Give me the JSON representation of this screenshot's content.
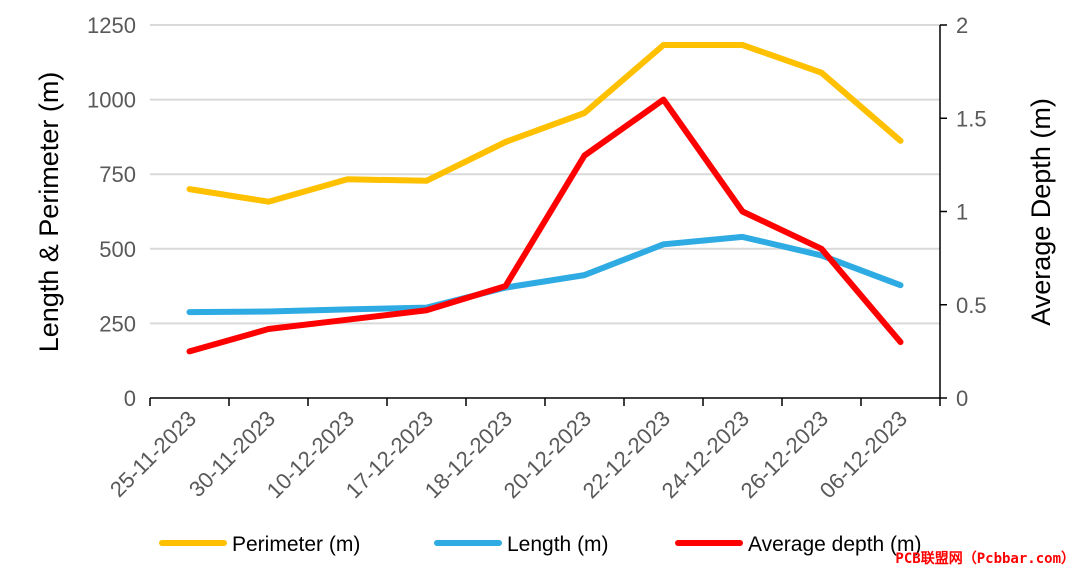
{
  "chart_data": {
    "type": "line",
    "categories": [
      "25-11-2023",
      "30-11-2023",
      "10-12-2023",
      "17-12-2023",
      "18-12-2023",
      "20-12-2023",
      "22-12-2023",
      "24-12-2023",
      "26-12-2023",
      "06-12-2023"
    ],
    "ylabel": "Length & Perimeter (m)",
    "y2label": "Average Depth (m)",
    "ylim": [
      0,
      1250
    ],
    "yticks": [
      0,
      250,
      500,
      750,
      1000,
      1250
    ],
    "y2lim": [
      0,
      2
    ],
    "y2ticks": [
      "0",
      "0.5",
      "1",
      "1.5",
      "2"
    ],
    "grid": true,
    "legend_position": "bottom",
    "series": [
      {
        "name": "Perimeter (m)",
        "axis": "left",
        "color": "#FFC000",
        "values": [
          700,
          658,
          733,
          728,
          858,
          955,
          1183,
          1183,
          1090,
          862
        ]
      },
      {
        "name": "Length (m)",
        "axis": "left",
        "color": "#2EABE2",
        "values": [
          288,
          290,
          297,
          303,
          370,
          412,
          515,
          540,
          478,
          378
        ]
      },
      {
        "name": "Average depth (m)",
        "axis": "right",
        "color": "#FF0000",
        "values": [
          0.25,
          0.37,
          0.42,
          0.47,
          0.6,
          1.3,
          1.6,
          1.0,
          0.8,
          0.3
        ]
      }
    ]
  },
  "watermark": "PCB联盟网（Pcbbar.com）"
}
